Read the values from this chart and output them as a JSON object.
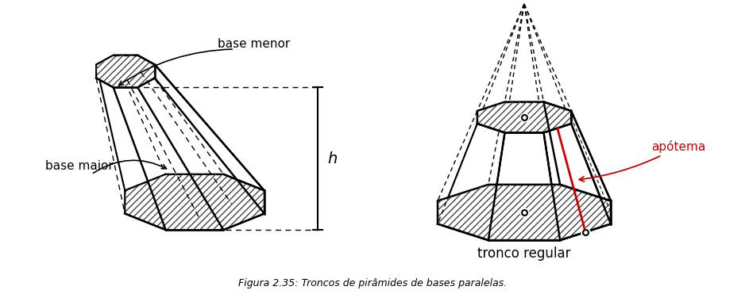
{
  "title": "Figura 2.35: Troncos de pirâmides de bases paralelas.",
  "bg_color": "#ffffff",
  "line_color": "#000000",
  "red_color": "#cc0000",
  "text_color": "#000000",
  "labels": {
    "base_menor": "base menor",
    "base_maior": "base maior",
    "h": "h",
    "apotema": "apótema",
    "tronco_regular": "tronco regular"
  },
  "fig_width": 9.38,
  "fig_height": 3.71
}
